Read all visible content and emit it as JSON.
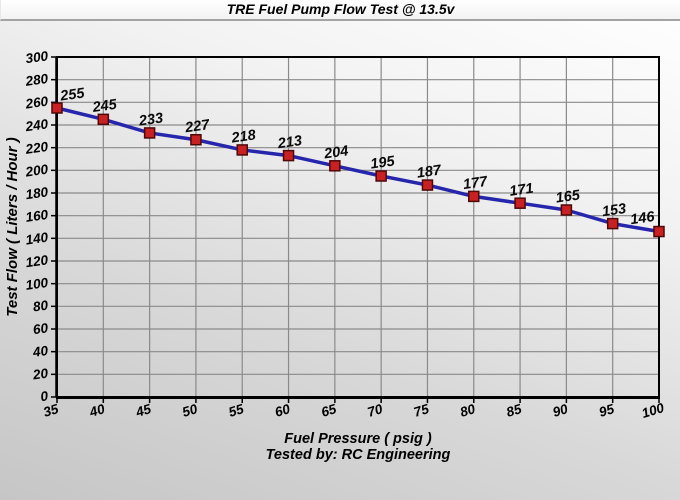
{
  "window": {
    "title": "TRE Fuel Pump Flow Test @ 13.5v"
  },
  "chart_data": {
    "type": "line",
    "title": "TRE Fuel Pump Flow Test @ 13.5v",
    "x": [
      35,
      40,
      45,
      50,
      55,
      60,
      65,
      70,
      75,
      80,
      85,
      90,
      95,
      100
    ],
    "values": [
      255,
      245,
      233,
      227,
      218,
      213,
      204,
      195,
      187,
      177,
      171,
      165,
      153,
      146
    ],
    "series": [
      {
        "name": "Test Flow",
        "values": [
          255,
          245,
          233,
          227,
          218,
          213,
          204,
          195,
          187,
          177,
          171,
          165,
          153,
          146
        ]
      }
    ],
    "xlabel": "Fuel Pressure ( psig )",
    "ylabel": "Test Flow ( Liters / Hour )",
    "footnote": "Tested by: RC Engineering",
    "xlim": [
      35,
      100
    ],
    "ylim": [
      0,
      300
    ],
    "xticks": [
      35,
      40,
      45,
      50,
      55,
      60,
      65,
      70,
      75,
      80,
      85,
      90,
      95,
      100
    ],
    "yticks": [
      0,
      20,
      40,
      60,
      80,
      100,
      120,
      140,
      160,
      180,
      200,
      220,
      240,
      260,
      280,
      300
    ],
    "grid": true,
    "legend": false,
    "marker": "square",
    "data_labels_shown": true,
    "colors": {
      "line": "#2626ad",
      "marker_fill": "#c92121",
      "marker_stroke": "#4d0808",
      "grid": "#8a8a8a",
      "axis": "#000000",
      "text": "#000000"
    }
  }
}
